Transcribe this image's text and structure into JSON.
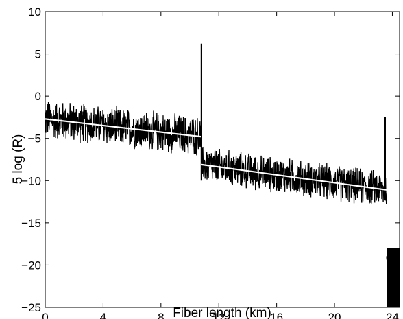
{
  "chart_data": {
    "type": "line",
    "title": "",
    "xlabel": "Fiber length (km)",
    "ylabel": "5 log (R)",
    "xlim": [
      0,
      24.5
    ],
    "ylim": [
      -25,
      10
    ],
    "xticks": [
      0,
      4,
      8,
      12,
      16,
      20,
      24
    ],
    "yticks": [
      10,
      5,
      0,
      -5,
      -10,
      -15,
      -20,
      -25
    ],
    "xtick_labels": [
      "0",
      "4",
      "8",
      "12",
      "16",
      "20",
      "24"
    ],
    "ytick_labels": [
      "10",
      "5",
      "0",
      "−5",
      "−10",
      "−15",
      "−20",
      "−25"
    ],
    "grid": false,
    "colors": {
      "trace": "#000000",
      "fit": "#ffffff",
      "background": "#ffffff"
    },
    "series": [
      {
        "style": "noisy-trace",
        "segments": [
          {
            "x_start": 0.0,
            "x_end": 10.8,
            "center_start": -2.7,
            "center_end": -4.8,
            "spread": 2.2
          },
          {
            "x_start": 10.8,
            "x_end": 23.6,
            "center_start": -8.1,
            "center_end": -11.1,
            "spread": 2.0
          },
          {
            "x_start": 23.6,
            "x_end": 24.5,
            "center_start": -19.5,
            "center_end": -19.5,
            "spread": 1.0
          }
        ],
        "spikes": [
          {
            "x": 10.8,
            "peak": 6.2
          },
          {
            "x": 23.5,
            "peak": -2.5
          }
        ],
        "drop": {
          "x": 23.6,
          "to": -25
        }
      },
      {
        "style": "linear-fit",
        "segments": [
          {
            "x": [
              0.0,
              10.8
            ],
            "y": [
              -2.7,
              -4.8
            ]
          },
          {
            "x": [
              10.8,
              23.6
            ],
            "y": [
              -8.1,
              -11.1
            ]
          }
        ]
      }
    ]
  }
}
